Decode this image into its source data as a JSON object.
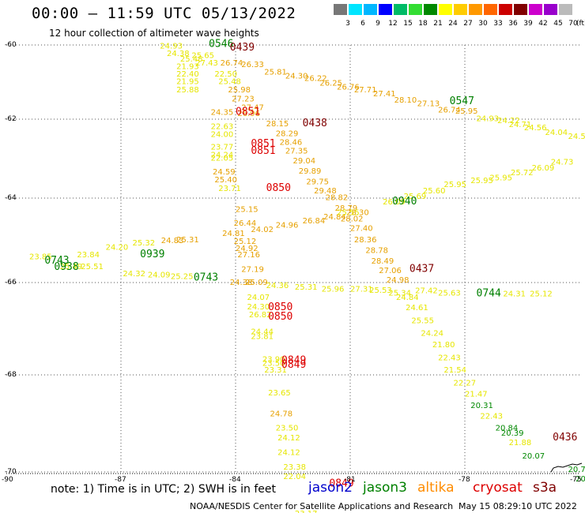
{
  "title": "00:00 – 11:59 UTC 05/13/2022",
  "subtitle": "12 hour collection of altimeter wave heights",
  "note": "note: 1) Time is in UTC; 2) SWH is in feet",
  "credit": "NOAA/NESDIS Center for Satellite Applications and Research",
  "timestamp": "May 15 08:29:10 UTC 2022",
  "satellites": [
    {
      "name": "jason2",
      "color": "#0000cc"
    },
    {
      "name": "jason3",
      "color": "#008000"
    },
    {
      "name": "altika",
      "color": "#ff8c00"
    },
    {
      "name": "cryosat",
      "color": "#dd0000"
    },
    {
      "name": "s3a",
      "color": "#800000"
    }
  ],
  "legend": {
    "unit": "(ft)",
    "colors": [
      "#777777",
      "#00e5ff",
      "#00b7ff",
      "#0000ff",
      "#00bb66",
      "#33dd33",
      "#008800",
      "#ffff00",
      "#ffcc00",
      "#ff9900",
      "#ff6600",
      "#cc0000",
      "#800000",
      "#cc00cc",
      "#9900cc",
      "#bbbbbb"
    ],
    "labels": [
      "3",
      "6",
      "9",
      "12",
      "15",
      "18",
      "21",
      "24",
      "27",
      "30",
      "33",
      "36",
      "39",
      "42",
      "45",
      "70"
    ]
  },
  "map": {
    "lat_labels": [
      "-60",
      "-62",
      "-64",
      "-66",
      "-68",
      "-70"
    ],
    "lon_labels": [
      "-90",
      "-87",
      "-84",
      "-81",
      "-78",
      "-75"
    ]
  },
  "observations": [
    {
      "t": "24.93",
      "lat": -60.1,
      "lon": -85.98,
      "c": "#e6e600"
    },
    {
      "t": "24.38",
      "lat": -60.3,
      "lon": -85.8,
      "c": "#e6e600"
    },
    {
      "t": "25.48",
      "lat": -60.45,
      "lon": -85.45,
      "c": "#e6e600"
    },
    {
      "t": "25.65",
      "lat": -60.35,
      "lon": -85.15,
      "c": "#e6e600"
    },
    {
      "t": "21.93",
      "lat": -60.65,
      "lon": -85.55,
      "c": "#e6e600"
    },
    {
      "t": "27.43",
      "lat": -60.55,
      "lon": -85.05,
      "c": "#e6e600"
    },
    {
      "t": "26.74",
      "lat": -60.55,
      "lon": -84.4,
      "c": "#e6a000"
    },
    {
      "t": "26.33",
      "lat": -60.6,
      "lon": -83.85,
      "c": "#e6a000"
    },
    {
      "t": "22.40",
      "lat": -60.85,
      "lon": -85.55,
      "c": "#e6e600"
    },
    {
      "t": "22.50",
      "lat": -60.85,
      "lon": -84.55,
      "c": "#e6e600"
    },
    {
      "t": "25.81",
      "lat": -60.8,
      "lon": -83.25,
      "c": "#e6a000"
    },
    {
      "t": "24.30",
      "lat": -60.9,
      "lon": -82.7,
      "c": "#e6a000"
    },
    {
      "t": "26.22",
      "lat": -60.97,
      "lon": -82.2,
      "c": "#e6a000"
    },
    {
      "t": "26.25",
      "lat": -61.1,
      "lon": -81.8,
      "c": "#e6a000"
    },
    {
      "t": "21.95",
      "lat": -61.05,
      "lon": -85.55,
      "c": "#e6e600"
    },
    {
      "t": "25.48",
      "lat": -61.05,
      "lon": -84.45,
      "c": "#e6e600"
    },
    {
      "t": "26.76",
      "lat": -61.2,
      "lon": -81.35,
      "c": "#e6a000"
    },
    {
      "t": "27.71",
      "lat": -61.28,
      "lon": -80.9,
      "c": "#e6a000"
    },
    {
      "t": "25.88",
      "lat": -61.28,
      "lon": -85.55,
      "c": "#e6e600"
    },
    {
      "t": "25.98",
      "lat": -61.28,
      "lon": -84.2,
      "c": "#e6a000"
    },
    {
      "t": "27.41",
      "lat": -61.38,
      "lon": -80.4,
      "c": "#e6a000"
    },
    {
      "t": "28.10",
      "lat": -61.55,
      "lon": -79.85,
      "c": "#e6a000"
    },
    {
      "t": "27.23",
      "lat": -61.52,
      "lon": -84.1,
      "c": "#e6a000"
    },
    {
      "t": "27.13",
      "lat": -61.65,
      "lon": -79.25,
      "c": "#e6a000"
    },
    {
      "t": "27.47",
      "lat": -61.75,
      "lon": -83.85,
      "c": "#e6a000"
    },
    {
      "t": "26.74",
      "lat": -61.82,
      "lon": -78.7,
      "c": "#e6a000"
    },
    {
      "t": "25.95",
      "lat": -61.85,
      "lon": -78.25,
      "c": "#e6a000"
    },
    {
      "t": "24.35",
      "lat": -61.88,
      "lon": -84.65,
      "c": "#e6a000"
    },
    {
      "t": "26.96",
      "lat": -61.92,
      "lon": -83.95,
      "c": "#e6a000"
    },
    {
      "t": "24.93",
      "lat": -62.05,
      "lon": -77.7,
      "c": "#e6e600"
    },
    {
      "t": "24.22",
      "lat": -62.1,
      "lon": -77.15,
      "c": "#e6e600"
    },
    {
      "t": "24.71",
      "lat": -62.2,
      "lon": -76.85,
      "c": "#e6e600"
    },
    {
      "t": "24.56",
      "lat": -62.28,
      "lon": -76.45,
      "c": "#e6e600"
    },
    {
      "t": "24.04",
      "lat": -62.4,
      "lon": -75.9,
      "c": "#e6e600"
    },
    {
      "t": "24.53",
      "lat": -62.5,
      "lon": -75.3,
      "c": "#e6e600"
    },
    {
      "t": "23.86",
      "lat": -62.6,
      "lon": -74.7,
      "c": "#e6e600"
    },
    {
      "t": "22.00",
      "lat": -62.7,
      "lon": -74.15,
      "c": "#e6e600"
    },
    {
      "t": "22.05",
      "lat": -62.82,
      "lon": -73.6,
      "c": "#e6e600"
    },
    {
      "t": "21.33",
      "lat": -62.88,
      "lon": -73.05,
      "c": "#e6e600"
    },
    {
      "t": "22.63",
      "lat": -62.25,
      "lon": -84.65,
      "c": "#e6e600"
    },
    {
      "t": "28.15",
      "lat": -62.18,
      "lon": -83.2,
      "c": "#e6a000"
    },
    {
      "t": "24.00",
      "lat": -62.45,
      "lon": -84.65,
      "c": "#e6e600"
    },
    {
      "t": "28.29",
      "lat": -62.43,
      "lon": -82.95,
      "c": "#e6a000"
    },
    {
      "t": "28.46",
      "lat": -62.65,
      "lon": -82.85,
      "c": "#e6a000"
    },
    {
      "t": "23.77",
      "lat": -62.77,
      "lon": -84.65,
      "c": "#e6e600"
    },
    {
      "t": "27.35",
      "lat": -62.87,
      "lon": -82.7,
      "c": "#e6a000"
    },
    {
      "t": "24.24",
      "lat": -62.97,
      "lon": -84.65,
      "c": "#e6e600"
    },
    {
      "t": "22.05",
      "lat": -63.05,
      "lon": -84.65,
      "c": "#e6e600"
    },
    {
      "t": "29.04",
      "lat": -63.12,
      "lon": -82.5,
      "c": "#e6a000"
    },
    {
      "t": "24.59",
      "lat": -63.4,
      "lon": -84.6,
      "c": "#e6a000"
    },
    {
      "t": "29.89",
      "lat": -63.38,
      "lon": -82.35,
      "c": "#e6a000"
    },
    {
      "t": "25.40",
      "lat": -63.6,
      "lon": -84.55,
      "c": "#e6a000"
    },
    {
      "t": "29.75",
      "lat": -63.65,
      "lon": -82.15,
      "c": "#e6a000"
    },
    {
      "t": "23.71",
      "lat": -63.82,
      "lon": -84.45,
      "c": "#e6e600"
    },
    {
      "t": "29.48",
      "lat": -63.88,
      "lon": -81.95,
      "c": "#e6a000"
    },
    {
      "t": "28.82",
      "lat": -64.05,
      "lon": -81.65,
      "c": "#e6a000"
    },
    {
      "t": "28.79",
      "lat": -64.3,
      "lon": -81.4,
      "c": "#e6a000"
    },
    {
      "t": "28.30",
      "lat": -64.4,
      "lon": -81.1,
      "c": "#e6a000"
    },
    {
      "t": "28.02",
      "lat": -64.55,
      "lon": -81.25,
      "c": "#e6a000"
    },
    {
      "t": "25.15",
      "lat": -64.33,
      "lon": -84.0,
      "c": "#e6a000"
    },
    {
      "t": "26.09",
      "lat": -64.15,
      "lon": -80.15,
      "c": "#e6e600"
    },
    {
      "t": "25.69",
      "lat": -64.02,
      "lon": -79.6,
      "c": "#e6e600"
    },
    {
      "t": "25.60",
      "lat": -63.88,
      "lon": -79.1,
      "c": "#e6e600"
    },
    {
      "t": "25.95",
      "lat": -63.72,
      "lon": -78.55,
      "c": "#e6e600"
    },
    {
      "t": "25.95",
      "lat": -63.62,
      "lon": -77.85,
      "c": "#e6e600"
    },
    {
      "t": "25.95",
      "lat": -63.55,
      "lon": -77.35,
      "c": "#e6e600"
    },
    {
      "t": "25.72",
      "lat": -63.42,
      "lon": -76.8,
      "c": "#e6e600"
    },
    {
      "t": "26.09",
      "lat": -63.3,
      "lon": -76.25,
      "c": "#e6e600"
    },
    {
      "t": "24.73",
      "lat": -63.15,
      "lon": -75.75,
      "c": "#e6e600"
    },
    {
      "t": "26.44",
      "lat": -64.65,
      "lon": -84.05,
      "c": "#e6a000"
    },
    {
      "t": "24.96",
      "lat": -64.7,
      "lon": -82.95,
      "c": "#e6a000"
    },
    {
      "t": "26.84",
      "lat": -64.6,
      "lon": -82.25,
      "c": "#e6a000"
    },
    {
      "t": "24.84",
      "lat": -64.5,
      "lon": -81.7,
      "c": "#e6a000"
    },
    {
      "t": "25.55",
      "lat": -64.4,
      "lon": -81.35,
      "c": "#e6e600"
    },
    {
      "t": "24.81",
      "lat": -64.9,
      "lon": -84.35,
      "c": "#e6a000"
    },
    {
      "t": "24.02",
      "lat": -64.8,
      "lon": -83.6,
      "c": "#e6a000"
    },
    {
      "t": "27.40",
      "lat": -64.78,
      "lon": -81.0,
      "c": "#e6a000"
    },
    {
      "t": "28.36",
      "lat": -65.05,
      "lon": -80.9,
      "c": "#e6a000"
    },
    {
      "t": "25.12",
      "lat": -65.08,
      "lon": -84.05,
      "c": "#e6a000"
    },
    {
      "t": "25.31",
      "lat": -65.05,
      "lon": -85.55,
      "c": "#e6a000"
    },
    {
      "t": "24.83",
      "lat": -65.07,
      "lon": -85.95,
      "c": "#e6a000"
    },
    {
      "t": "24.92",
      "lat": -65.25,
      "lon": -84.0,
      "c": "#e6a000"
    },
    {
      "t": "28.78",
      "lat": -65.3,
      "lon": -80.6,
      "c": "#e6a000"
    },
    {
      "t": "27.16",
      "lat": -65.4,
      "lon": -83.95,
      "c": "#e6a000"
    },
    {
      "t": "28.49",
      "lat": -65.55,
      "lon": -80.45,
      "c": "#e6a000"
    },
    {
      "t": "27.06",
      "lat": -65.78,
      "lon": -80.25,
      "c": "#e6a000"
    },
    {
      "t": "25.32",
      "lat": -65.12,
      "lon": -86.7,
      "c": "#e6e600"
    },
    {
      "t": "24.20",
      "lat": -65.22,
      "lon": -87.4,
      "c": "#e6e600"
    },
    {
      "t": "23.84",
      "lat": -65.4,
      "lon": -88.15,
      "c": "#e6e600"
    },
    {
      "t": "23.85",
      "lat": -65.45,
      "lon": -89.4,
      "c": "#e6e600"
    },
    {
      "t": "25.51",
      "lat": -65.68,
      "lon": -88.05,
      "c": "#e6e600"
    },
    {
      "t": "25.49",
      "lat": -65.68,
      "lon": -88.6,
      "c": "#e6e600"
    },
    {
      "t": "24.32",
      "lat": -65.85,
      "lon": -86.95,
      "c": "#e6e600"
    },
    {
      "t": "24.09",
      "lat": -65.88,
      "lon": -86.3,
      "c": "#e6e600"
    },
    {
      "t": "25.25",
      "lat": -65.92,
      "lon": -85.7,
      "c": "#e6e600"
    },
    {
      "t": "27.19",
      "lat": -65.75,
      "lon": -83.85,
      "c": "#e6a000"
    },
    {
      "t": "24.98",
      "lat": -66.0,
      "lon": -80.05,
      "c": "#e6a000"
    },
    {
      "t": "24.38",
      "lat": -66.05,
      "lon": -84.15,
      "c": "#e6a000"
    },
    {
      "t": "25.09",
      "lat": -66.05,
      "lon": -83.75,
      "c": "#e6a000"
    },
    {
      "t": "24.36",
      "lat": -66.12,
      "lon": -83.2,
      "c": "#e6e600"
    },
    {
      "t": "25.31",
      "lat": -66.15,
      "lon": -82.45,
      "c": "#e6e600"
    },
    {
      "t": "25.96",
      "lat": -66.2,
      "lon": -81.75,
      "c": "#e6e600"
    },
    {
      "t": "27.31",
      "lat": -66.2,
      "lon": -81.0,
      "c": "#e6e600"
    },
    {
      "t": "25.53",
      "lat": -66.22,
      "lon": -80.5,
      "c": "#e6e600"
    },
    {
      "t": "25.34",
      "lat": -66.28,
      "lon": -80.0,
      "c": "#e6e600"
    },
    {
      "t": "27.42",
      "lat": -66.23,
      "lon": -79.3,
      "c": "#e6e600"
    },
    {
      "t": "25.63",
      "lat": -66.28,
      "lon": -78.7,
      "c": "#e6e600"
    },
    {
      "t": "24.31",
      "lat": -66.3,
      "lon": -77.0,
      "c": "#e6e600"
    },
    {
      "t": "25.12",
      "lat": -66.3,
      "lon": -76.3,
      "c": "#e6e600"
    },
    {
      "t": "24.84",
      "lat": -66.38,
      "lon": -79.8,
      "c": "#e6e600"
    },
    {
      "t": "24.07",
      "lat": -66.38,
      "lon": -83.7,
      "c": "#e6e600"
    },
    {
      "t": "24.30",
      "lat": -66.58,
      "lon": -83.7,
      "c": "#e6e600"
    },
    {
      "t": "24.61",
      "lat": -66.6,
      "lon": -79.55,
      "c": "#e6e600"
    },
    {
      "t": "26.82",
      "lat": -66.75,
      "lon": -83.65,
      "c": "#e6e600"
    },
    {
      "t": "25.55",
      "lat": -66.88,
      "lon": -79.4,
      "c": "#e6e600"
    },
    {
      "t": "24.44",
      "lat": -67.12,
      "lon": -83.6,
      "c": "#e6e600"
    },
    {
      "t": "24.24",
      "lat": -67.15,
      "lon": -79.15,
      "c": "#e6e600"
    },
    {
      "t": "23.81",
      "lat": -67.22,
      "lon": -83.6,
      "c": "#e6e600"
    },
    {
      "t": "21.80",
      "lat": -67.4,
      "lon": -78.85,
      "c": "#e6e600"
    },
    {
      "t": "23.90",
      "lat": -67.72,
      "lon": -83.3,
      "c": "#e6e600"
    },
    {
      "t": "23.50",
      "lat": -67.8,
      "lon": -83.3,
      "c": "#e6e600"
    },
    {
      "t": "22.43",
      "lat": -67.68,
      "lon": -78.7,
      "c": "#e6e600"
    },
    {
      "t": "23.31",
      "lat": -67.95,
      "lon": -83.25,
      "c": "#e6e600"
    },
    {
      "t": "21.54",
      "lat": -67.95,
      "lon": -78.55,
      "c": "#e6e600"
    },
    {
      "t": "22.27",
      "lat": -68.22,
      "lon": -78.3,
      "c": "#e6e600"
    },
    {
      "t": "23.65",
      "lat": -68.42,
      "lon": -83.15,
      "c": "#e6e600"
    },
    {
      "t": "21.47",
      "lat": -68.45,
      "lon": -78.0,
      "c": "#e6e600"
    },
    {
      "t": "20.31",
      "lat": -68.68,
      "lon": -77.85,
      "c": "#008800"
    },
    {
      "t": "24.78",
      "lat": -68.85,
      "lon": -83.1,
      "c": "#e6a000"
    },
    {
      "t": "22.43",
      "lat": -68.9,
      "lon": -77.6,
      "c": "#e6e600"
    },
    {
      "t": "23.50",
      "lat": -69.15,
      "lon": -82.95,
      "c": "#e6e600"
    },
    {
      "t": "20.84",
      "lat": -69.15,
      "lon": -77.2,
      "c": "#008800"
    },
    {
      "t": "24.12",
      "lat": -69.35,
      "lon": -82.9,
      "c": "#e6e600"
    },
    {
      "t": "20.39",
      "lat": -69.25,
      "lon": -77.05,
      "c": "#008800"
    },
    {
      "t": "21.88",
      "lat": -69.45,
      "lon": -76.85,
      "c": "#e6e600"
    },
    {
      "t": "24.12",
      "lat": -69.65,
      "lon": -82.9,
      "c": "#e6e600"
    },
    {
      "t": "20.07",
      "lat": -69.72,
      "lon": -76.5,
      "c": "#008800"
    },
    {
      "t": "23.38",
      "lat": -69.95,
      "lon": -82.75,
      "c": "#e6e600"
    },
    {
      "t": "20.76",
      "lat": -70.0,
      "lon": -75.3,
      "c": "#008800"
    },
    {
      "t": "22.04",
      "lat": -70.15,
      "lon": -82.75,
      "c": "#e6e600"
    },
    {
      "t": "20.20",
      "lat": -70.2,
      "lon": -75.1,
      "c": "#008800"
    },
    {
      "t": "23.17",
      "lat": -70.92,
      "lon": -82.45,
      "c": "#e6e600"
    }
  ],
  "pass_labels": [
    {
      "t": "0546",
      "lat": -60.05,
      "lon": -84.7,
      "c": "#008000"
    },
    {
      "t": "0439",
      "lat": -60.15,
      "lon": -84.15,
      "c": "#800000"
    },
    {
      "t": "0547",
      "lat": -61.6,
      "lon": -78.4,
      "c": "#008000"
    },
    {
      "t": "0851",
      "lat": -61.88,
      "lon": -84.0,
      "c": "#dd0000"
    },
    {
      "t": "0438",
      "lat": -62.18,
      "lon": -82.25,
      "c": "#800000"
    },
    {
      "t": "0851",
      "lat": -62.7,
      "lon": -83.6,
      "c": "#dd0000"
    },
    {
      "t": "0851",
      "lat": -62.88,
      "lon": -83.6,
      "c": "#dd0000"
    },
    {
      "t": "0850",
      "lat": -63.82,
      "lon": -83.2,
      "c": "#dd0000"
    },
    {
      "t": "0940",
      "lat": -64.15,
      "lon": -79.9,
      "c": "#008000"
    },
    {
      "t": "0939",
      "lat": -65.4,
      "lon": -86.5,
      "c": "#008000"
    },
    {
      "t": "0743",
      "lat": -65.55,
      "lon": -89.0,
      "c": "#008000"
    },
    {
      "t": "0938",
      "lat": -65.7,
      "lon": -88.75,
      "c": "#008000"
    },
    {
      "t": "0437",
      "lat": -65.75,
      "lon": -79.45,
      "c": "#800000"
    },
    {
      "t": "0743",
      "lat": -65.95,
      "lon": -85.1,
      "c": "#008000"
    },
    {
      "t": "0744",
      "lat": -66.3,
      "lon": -77.7,
      "c": "#008000"
    },
    {
      "t": "0850",
      "lat": -66.6,
      "lon": -83.15,
      "c": "#dd0000"
    },
    {
      "t": "0850",
      "lat": -66.8,
      "lon": -83.15,
      "c": "#dd0000"
    },
    {
      "t": "0849",
      "lat": -67.75,
      "lon": -82.8,
      "c": "#dd0000"
    },
    {
      "t": "0849",
      "lat": -67.85,
      "lon": -82.8,
      "c": "#dd0000"
    },
    {
      "t": "0436",
      "lat": -69.35,
      "lon": -75.7,
      "c": "#800000"
    },
    {
      "t": "0849",
      "lat": -70.3,
      "lon": -81.55,
      "c": "#dd0000"
    }
  ]
}
